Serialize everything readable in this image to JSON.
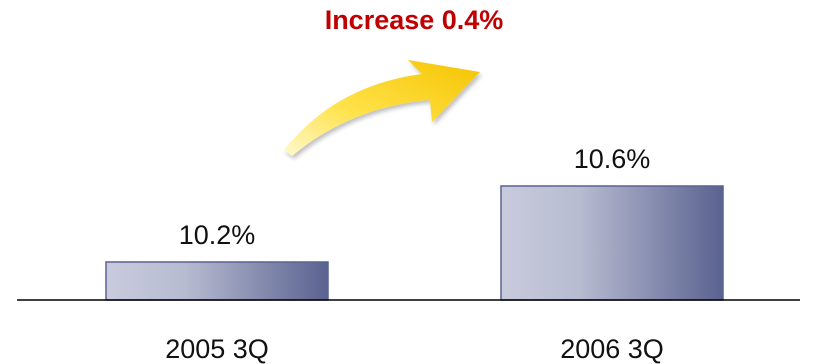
{
  "chart_data": {
    "type": "bar",
    "categories": [
      "2005 3Q",
      "2006 3Q"
    ],
    "values": [
      10.2,
      10.6
    ],
    "data_labels": [
      "10.2%",
      "10.6%"
    ],
    "ylim": [
      10.0,
      10.8
    ],
    "grid": false,
    "legend": "none",
    "annotation": {
      "text": "Increase 0.4%",
      "color": "#c00000",
      "arrow_color": "#f5c400"
    },
    "colors": {
      "bar_gradient_start": "#c8cbdc",
      "bar_gradient_end": "#5a6290",
      "bar_border": "#5a6290",
      "baseline": "#000000"
    }
  }
}
